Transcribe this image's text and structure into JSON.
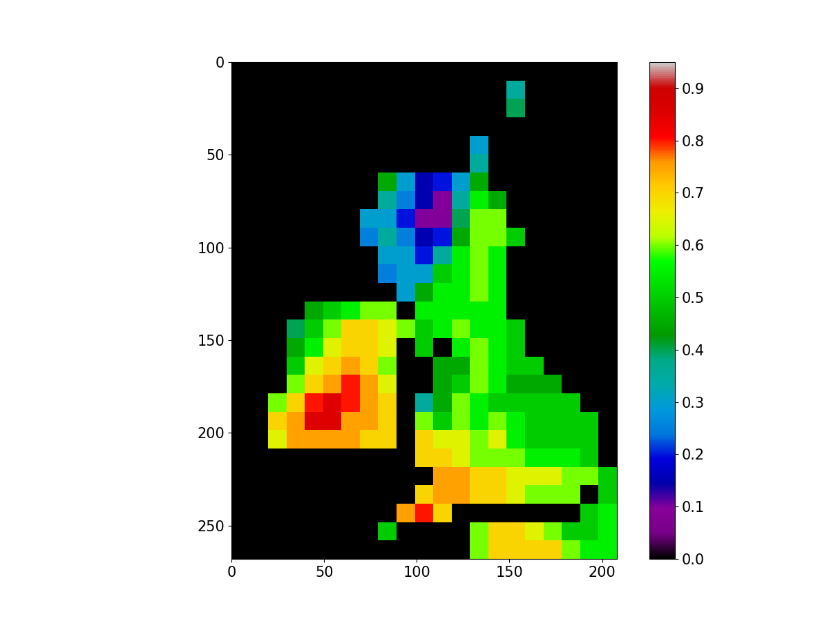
{
  "chart_data": {
    "type": "heatmap",
    "xlim": [
      0,
      208
    ],
    "ylim": [
      268,
      0
    ],
    "xticks": [
      0,
      50,
      100,
      150,
      200
    ],
    "yticks": [
      0,
      50,
      100,
      150,
      200,
      250
    ],
    "colorbar_range": [
      0,
      0.95
    ],
    "colorbar_ticks": [
      0.0,
      0.1,
      0.2,
      0.3,
      0.4,
      0.5,
      0.6,
      0.7,
      0.8,
      0.9
    ],
    "cells": [
      [
        0,
        0,
        0,
        0,
        0,
        0,
        0,
        0,
        0,
        0,
        0,
        0,
        0,
        0,
        0,
        0,
        0,
        0,
        0,
        0,
        0
      ],
      [
        0,
        0,
        0,
        0,
        0,
        0,
        0,
        0,
        0,
        0,
        0,
        0,
        0,
        0,
        0,
        0.35,
        0,
        0,
        0,
        0,
        0
      ],
      [
        0,
        0,
        0,
        0,
        0,
        0,
        0,
        0,
        0,
        0,
        0,
        0,
        0,
        0,
        0,
        0.4,
        0,
        0,
        0,
        0,
        0
      ],
      [
        0,
        0,
        0,
        0,
        0,
        0,
        0,
        0,
        0,
        0,
        0,
        0,
        0,
        0,
        0,
        0,
        0,
        0,
        0,
        0,
        0
      ],
      [
        0,
        0,
        0,
        0,
        0,
        0,
        0,
        0,
        0,
        0,
        0,
        0,
        0,
        0.3,
        0,
        0,
        0,
        0,
        0,
        0,
        0
      ],
      [
        0,
        0,
        0,
        0,
        0,
        0,
        0,
        0,
        0,
        0,
        0,
        0,
        0,
        0.35,
        0,
        0,
        0,
        0,
        0,
        0,
        0
      ],
      [
        0,
        0,
        0,
        0,
        0,
        0,
        0,
        0,
        0.45,
        0.3,
        0.15,
        0.2,
        0.3,
        0.45,
        0,
        0,
        0,
        0,
        0,
        0,
        0
      ],
      [
        0,
        0,
        0,
        0,
        0,
        0,
        0,
        0,
        0.35,
        0.25,
        0.15,
        0.1,
        0.35,
        0.55,
        0.45,
        0,
        0,
        0,
        0,
        0,
        0
      ],
      [
        0,
        0,
        0,
        0,
        0,
        0,
        0,
        0.3,
        0.3,
        0.2,
        0.1,
        0.1,
        0.4,
        0.6,
        0.6,
        0,
        0,
        0,
        0,
        0,
        0
      ],
      [
        0,
        0,
        0,
        0,
        0,
        0,
        0,
        0.25,
        0.35,
        0.25,
        0.15,
        0.2,
        0.45,
        0.6,
        0.6,
        0.5,
        0,
        0,
        0,
        0,
        0
      ],
      [
        0,
        0,
        0,
        0,
        0,
        0,
        0,
        0,
        0.3,
        0.3,
        0.2,
        0.35,
        0.55,
        0.6,
        0.55,
        0,
        0,
        0,
        0,
        0,
        0
      ],
      [
        0,
        0,
        0,
        0,
        0,
        0,
        0,
        0,
        0.25,
        0.3,
        0.3,
        0.5,
        0.55,
        0.6,
        0.55,
        0,
        0,
        0,
        0,
        0,
        0
      ],
      [
        0,
        0,
        0,
        0,
        0,
        0,
        0,
        0,
        0,
        0.3,
        0.45,
        0.55,
        0.55,
        0.6,
        0.55,
        0,
        0,
        0,
        0,
        0,
        0
      ],
      [
        0,
        0,
        0,
        0,
        0.45,
        0.5,
        0.55,
        0.6,
        0.6,
        0,
        0.55,
        0.55,
        0.55,
        0.55,
        0.55,
        0,
        0,
        0,
        0,
        0,
        0
      ],
      [
        0,
        0,
        0,
        0.4,
        0.5,
        0.6,
        0.7,
        0.7,
        0.65,
        0.6,
        0.5,
        0.55,
        0.6,
        0.55,
        0.55,
        0.5,
        0,
        0,
        0,
        0,
        0
      ],
      [
        0,
        0,
        0,
        0.45,
        0.55,
        0.65,
        0.7,
        0.7,
        0.65,
        0,
        0.5,
        0,
        0.55,
        0.6,
        0.55,
        0.5,
        0,
        0,
        0,
        0,
        0
      ],
      [
        0,
        0,
        0,
        0.5,
        0.65,
        0.7,
        0.75,
        0.7,
        0.6,
        0,
        0,
        0.45,
        0.45,
        0.6,
        0.55,
        0.5,
        0.5,
        0,
        0,
        0,
        0
      ],
      [
        0,
        0,
        0,
        0.6,
        0.7,
        0.75,
        0.8,
        0.75,
        0.65,
        0,
        0,
        0.45,
        0.5,
        0.6,
        0.55,
        0.45,
        0.45,
        0.45,
        0,
        0,
        0
      ],
      [
        0,
        0,
        0.6,
        0.7,
        0.8,
        0.85,
        0.8,
        0.75,
        0.7,
        0,
        0.35,
        0.45,
        0.6,
        0.55,
        0.5,
        0.5,
        0.5,
        0.5,
        0.5,
        0,
        0
      ],
      [
        0,
        0,
        0.7,
        0.75,
        0.85,
        0.85,
        0.75,
        0.75,
        0.7,
        0,
        0.6,
        0.5,
        0.6,
        0.55,
        0.6,
        0.55,
        0.5,
        0.5,
        0.5,
        0.5,
        0
      ],
      [
        0,
        0,
        0.65,
        0.75,
        0.75,
        0.75,
        0.75,
        0.7,
        0.7,
        0,
        0.7,
        0.65,
        0.65,
        0.6,
        0.65,
        0.55,
        0.5,
        0.5,
        0.5,
        0.5,
        0
      ],
      [
        0,
        0,
        0,
        0,
        0,
        0,
        0,
        0,
        0,
        0,
        0.7,
        0.7,
        0.65,
        0.6,
        0.6,
        0.6,
        0.55,
        0.55,
        0.55,
        0.5,
        0
      ],
      [
        0,
        0,
        0,
        0,
        0,
        0,
        0,
        0,
        0,
        0,
        0,
        0.75,
        0.75,
        0.7,
        0.7,
        0.65,
        0.65,
        0.65,
        0.6,
        0.6,
        0.5
      ],
      [
        0,
        0,
        0,
        0,
        0,
        0,
        0,
        0,
        0,
        0,
        0.7,
        0.75,
        0.75,
        0.7,
        0.7,
        0.65,
        0.6,
        0.6,
        0.6,
        0,
        0.5
      ],
      [
        0,
        0,
        0,
        0,
        0,
        0,
        0,
        0,
        0,
        0.75,
        0.8,
        0.7,
        0,
        0,
        0,
        0,
        0,
        0,
        0,
        0.5,
        0.55
      ],
      [
        0,
        0,
        0,
        0,
        0,
        0,
        0,
        0,
        0.5,
        0,
        0,
        0,
        0,
        0.6,
        0.7,
        0.7,
        0.65,
        0.6,
        0.5,
        0.5,
        0.55
      ],
      [
        0,
        0,
        0,
        0,
        0,
        0,
        0,
        0,
        0,
        0,
        0,
        0,
        0,
        0.6,
        0.7,
        0.7,
        0.7,
        0.7,
        0.6,
        0.55,
        0.55
      ]
    ]
  }
}
